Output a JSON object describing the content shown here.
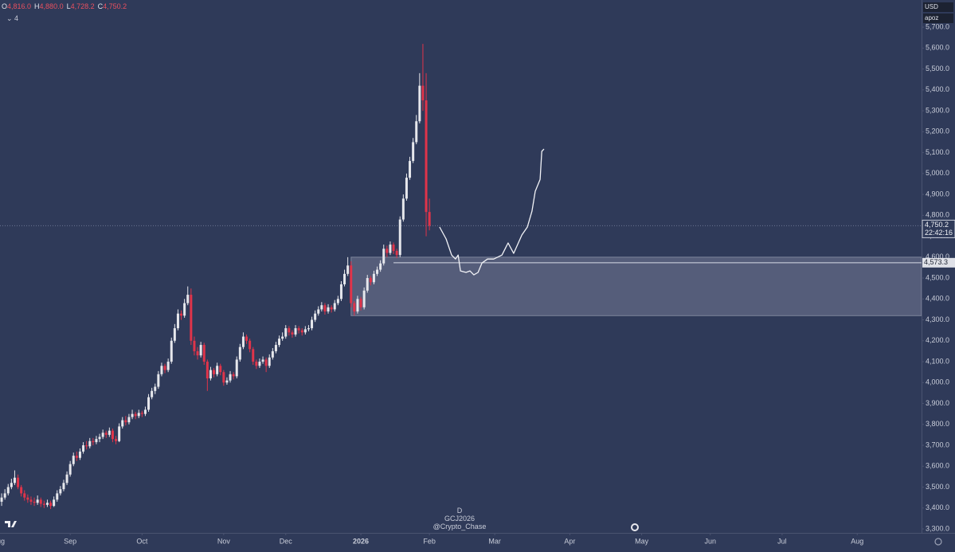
{
  "chart_data": {
    "type": "candlestick",
    "symbol": "GCJ2026",
    "interval": "D",
    "author": "@Crypto_Chase",
    "currency": "USD",
    "scale_label": "apoz",
    "indicator_count": 4,
    "ohlc_prefixes": [
      "O",
      "H",
      "L",
      "C"
    ],
    "ohlc_labels": [
      "4,816.0",
      "4,880.0",
      "4,728.2",
      "4,750.2"
    ],
    "colors": {
      "up": "#e6e7ec",
      "down": "#e0344a",
      "zone": "#8a90aa",
      "projection": "#f2f3f7"
    },
    "ohlc": [
      [
        3430,
        3470,
        3410,
        3450
      ],
      [
        3450,
        3490,
        3440,
        3470
      ],
      [
        3470,
        3515,
        3460,
        3500
      ],
      [
        3500,
        3540,
        3490,
        3520
      ],
      [
        3520,
        3580,
        3510,
        3545
      ],
      [
        3545,
        3560,
        3490,
        3500
      ],
      [
        3500,
        3510,
        3455,
        3470
      ],
      [
        3470,
        3485,
        3435,
        3450
      ],
      [
        3450,
        3465,
        3425,
        3440
      ],
      [
        3440,
        3455,
        3415,
        3430
      ],
      [
        3430,
        3450,
        3410,
        3425
      ],
      [
        3425,
        3460,
        3415,
        3440
      ],
      [
        3440,
        3450,
        3405,
        3420
      ],
      [
        3420,
        3435,
        3400,
        3415
      ],
      [
        3415,
        3440,
        3405,
        3425
      ],
      [
        3425,
        3435,
        3395,
        3410
      ],
      [
        3410,
        3455,
        3405,
        3440
      ],
      [
        3440,
        3485,
        3430,
        3470
      ],
      [
        3470,
        3505,
        3460,
        3490
      ],
      [
        3490,
        3535,
        3480,
        3520
      ],
      [
        3520,
        3575,
        3510,
        3560
      ],
      [
        3560,
        3625,
        3550,
        3610
      ],
      [
        3610,
        3665,
        3600,
        3650
      ],
      [
        3650,
        3670,
        3625,
        3640
      ],
      [
        3640,
        3685,
        3630,
        3670
      ],
      [
        3670,
        3715,
        3660,
        3700
      ],
      [
        3700,
        3720,
        3680,
        3695
      ],
      [
        3695,
        3735,
        3685,
        3720
      ],
      [
        3720,
        3735,
        3700,
        3715
      ],
      [
        3715,
        3745,
        3705,
        3730
      ],
      [
        3730,
        3755,
        3715,
        3740
      ],
      [
        3740,
        3775,
        3730,
        3760
      ],
      [
        3760,
        3770,
        3735,
        3750
      ],
      [
        3750,
        3785,
        3740,
        3770
      ],
      [
        3770,
        3780,
        3715,
        3730
      ],
      [
        3730,
        3745,
        3705,
        3720
      ],
      [
        3720,
        3805,
        3715,
        3790
      ],
      [
        3790,
        3835,
        3780,
        3820
      ],
      [
        3820,
        3840,
        3795,
        3810
      ],
      [
        3810,
        3850,
        3800,
        3835
      ],
      [
        3835,
        3870,
        3825,
        3850
      ],
      [
        3850,
        3860,
        3825,
        3840
      ],
      [
        3840,
        3870,
        3830,
        3855
      ],
      [
        3855,
        3865,
        3835,
        3850
      ],
      [
        3850,
        3885,
        3840,
        3870
      ],
      [
        3870,
        3945,
        3860,
        3930
      ],
      [
        3930,
        3975,
        3920,
        3960
      ],
      [
        3960,
        3995,
        3945,
        3980
      ],
      [
        3980,
        4055,
        3970,
        4040
      ],
      [
        4040,
        4095,
        4030,
        4080
      ],
      [
        4080,
        4090,
        4045,
        4060
      ],
      [
        4060,
        4115,
        4050,
        4100
      ],
      [
        4100,
        4215,
        4090,
        4200
      ],
      [
        4200,
        4280,
        4190,
        4260
      ],
      [
        4260,
        4350,
        4250,
        4330
      ],
      [
        4330,
        4345,
        4300,
        4320
      ],
      [
        4320,
        4400,
        4310,
        4380
      ],
      [
        4380,
        4460,
        4370,
        4420
      ],
      [
        4420,
        4450,
        4180,
        4200
      ],
      [
        4200,
        4220,
        4130,
        4150
      ],
      [
        4150,
        4170,
        4110,
        4130
      ],
      [
        4130,
        4195,
        4120,
        4180
      ],
      [
        4180,
        4190,
        4085,
        4100
      ],
      [
        4100,
        4110,
        3960,
        4020
      ],
      [
        4020,
        4075,
        4010,
        4060
      ],
      [
        4060,
        4070,
        4025,
        4040
      ],
      [
        4040,
        4095,
        4030,
        4080
      ],
      [
        4080,
        4090,
        4035,
        4050
      ],
      [
        4050,
        4060,
        3985,
        4000
      ],
      [
        4000,
        4025,
        3990,
        4010
      ],
      [
        4010,
        4055,
        4000,
        4040
      ],
      [
        4040,
        4050,
        4015,
        4030
      ],
      [
        4030,
        4125,
        4020,
        4110
      ],
      [
        4110,
        4185,
        4100,
        4170
      ],
      [
        4170,
        4240,
        4160,
        4220
      ],
      [
        4220,
        4230,
        4185,
        4200
      ],
      [
        4200,
        4210,
        4145,
        4160
      ],
      [
        4160,
        4170,
        4085,
        4100
      ],
      [
        4100,
        4110,
        4065,
        4080
      ],
      [
        4080,
        4115,
        4070,
        4100
      ],
      [
        4100,
        4125,
        4090,
        4110
      ],
      [
        4110,
        4120,
        4050,
        4080
      ],
      [
        4080,
        4135,
        4070,
        4120
      ],
      [
        4120,
        4165,
        4110,
        4150
      ],
      [
        4150,
        4195,
        4140,
        4180
      ],
      [
        4180,
        4225,
        4170,
        4210
      ],
      [
        4210,
        4240,
        4200,
        4220
      ],
      [
        4220,
        4275,
        4210,
        4260
      ],
      [
        4260,
        4270,
        4225,
        4240
      ],
      [
        4240,
        4250,
        4215,
        4230
      ],
      [
        4230,
        4275,
        4220,
        4260
      ],
      [
        4260,
        4270,
        4235,
        4250
      ],
      [
        4250,
        4260,
        4225,
        4240
      ],
      [
        4240,
        4270,
        4230,
        4255
      ],
      [
        4255,
        4275,
        4245,
        4260
      ],
      [
        4260,
        4315,
        4250,
        4300
      ],
      [
        4300,
        4345,
        4290,
        4330
      ],
      [
        4330,
        4365,
        4320,
        4350
      ],
      [
        4350,
        4385,
        4340,
        4370
      ],
      [
        4370,
        4380,
        4325,
        4340
      ],
      [
        4340,
        4375,
        4330,
        4360
      ],
      [
        4360,
        4370,
        4335,
        4350
      ],
      [
        4350,
        4395,
        4340,
        4380
      ],
      [
        4380,
        4415,
        4370,
        4400
      ],
      [
        4400,
        4485,
        4390,
        4470
      ],
      [
        4470,
        4540,
        4460,
        4520
      ],
      [
        4520,
        4600,
        4510,
        4560
      ],
      [
        4560,
        4580,
        4360,
        4380
      ],
      [
        4380,
        4390,
        4320,
        4340
      ],
      [
        4340,
        4415,
        4330,
        4400
      ],
      [
        4400,
        4410,
        4345,
        4360
      ],
      [
        4360,
        4455,
        4350,
        4440
      ],
      [
        4440,
        4515,
        4430,
        4500
      ],
      [
        4500,
        4510,
        4465,
        4480
      ],
      [
        4480,
        4535,
        4470,
        4520
      ],
      [
        4520,
        4555,
        4510,
        4540
      ],
      [
        4540,
        4585,
        4530,
        4570
      ],
      [
        4570,
        4660,
        4560,
        4640
      ],
      [
        4640,
        4655,
        4600,
        4620
      ],
      [
        4620,
        4675,
        4610,
        4660
      ],
      [
        4660,
        4670,
        4615,
        4630
      ],
      [
        4630,
        4640,
        4595,
        4610
      ],
      [
        4610,
        4795,
        4600,
        4780
      ],
      [
        4780,
        4900,
        4770,
        4880
      ],
      [
        4880,
        5000,
        4870,
        4980
      ],
      [
        4980,
        5080,
        4970,
        5060
      ],
      [
        5060,
        5170,
        5050,
        5150
      ],
      [
        5150,
        5280,
        5140,
        5250
      ],
      [
        5250,
        5480,
        5240,
        5420
      ],
      [
        5420,
        5620,
        5300,
        5350
      ],
      [
        5350,
        5480,
        4700,
        4816
      ],
      [
        4816,
        4880,
        4728.2,
        4750.2
      ]
    ],
    "xlim": [
      -0.5,
      281.7
    ],
    "xticks": [
      {
        "value": -1,
        "label": "Aug"
      },
      {
        "value": 21,
        "label": "Sep"
      },
      {
        "value": 43,
        "label": "Oct"
      },
      {
        "value": 68,
        "label": "Nov"
      },
      {
        "value": 87,
        "label": "Dec"
      },
      {
        "value": 110,
        "label": "2026"
      },
      {
        "value": 131,
        "label": "Feb"
      },
      {
        "value": 151,
        "label": "Mar"
      },
      {
        "value": 174,
        "label": "Apr"
      },
      {
        "value": 196,
        "label": "May"
      },
      {
        "value": 217,
        "label": "Jun"
      },
      {
        "value": 239,
        "label": "Jul"
      },
      {
        "value": 262,
        "label": "Aug"
      }
    ],
    "ylim": [
      3281,
      5830
    ],
    "yticks": [
      {
        "value": 3300,
        "label": "3,300.0"
      },
      {
        "value": 3400,
        "label": "3,400.0"
      },
      {
        "value": 3500,
        "label": "3,500.0"
      },
      {
        "value": 3600,
        "label": "3,600.0"
      },
      {
        "value": 3700,
        "label": "3,700.0"
      },
      {
        "value": 3800,
        "label": "3,800.0"
      },
      {
        "value": 3900,
        "label": "3,900.0"
      },
      {
        "value": 4000,
        "label": "4,000.0"
      },
      {
        "value": 4100,
        "label": "4,100.0"
      },
      {
        "value": 4200,
        "label": "4,200.0"
      },
      {
        "value": 4300,
        "label": "4,300.0"
      },
      {
        "value": 4400,
        "label": "4,400.0"
      },
      {
        "value": 4500,
        "label": "4,500.0"
      },
      {
        "value": 4600,
        "label": "4,600.0"
      },
      {
        "value": 4700,
        "label": "4,700.0"
      },
      {
        "value": 4800,
        "label": "4,800.0"
      },
      {
        "value": 4900,
        "label": "4,900.0"
      },
      {
        "value": 5000,
        "label": "5,000.0"
      },
      {
        "value": 5100,
        "label": "5,100.0"
      },
      {
        "value": 5200,
        "label": "5,200.0"
      },
      {
        "value": 5300,
        "label": "5,300.0"
      },
      {
        "value": 5400,
        "label": "5,400.0"
      },
      {
        "value": 5500,
        "label": "5,500.0"
      },
      {
        "value": 5600,
        "label": "5,600.0"
      },
      {
        "value": 5700,
        "label": "5,700.0"
      }
    ],
    "last_price": {
      "value": 4750.2,
      "label": "4,750.2",
      "countdown": "22:42:16"
    },
    "level": {
      "value": 4573.3,
      "label": "4,573.3",
      "start": 120
    },
    "zone": {
      "top": 4600,
      "bottom": 4320,
      "start": 107
    },
    "projection": {
      "x": [
        134.1,
        136.1,
        137.8,
        139,
        139.8,
        140.5,
        142.2,
        143.4,
        144.6,
        145.9,
        147.1,
        148.8,
        150.7,
        153.2,
        155.1,
        156.8,
        159.3,
        161,
        162.4,
        163.4,
        164.9,
        165.4,
        166.1
      ],
      "y": [
        4744,
        4687,
        4610,
        4591,
        4610,
        4534,
        4527,
        4534,
        4515,
        4527,
        4572,
        4591,
        4591,
        4610,
        4668,
        4618,
        4706,
        4744,
        4820,
        4915,
        4972,
        5106,
        5117
      ]
    }
  }
}
